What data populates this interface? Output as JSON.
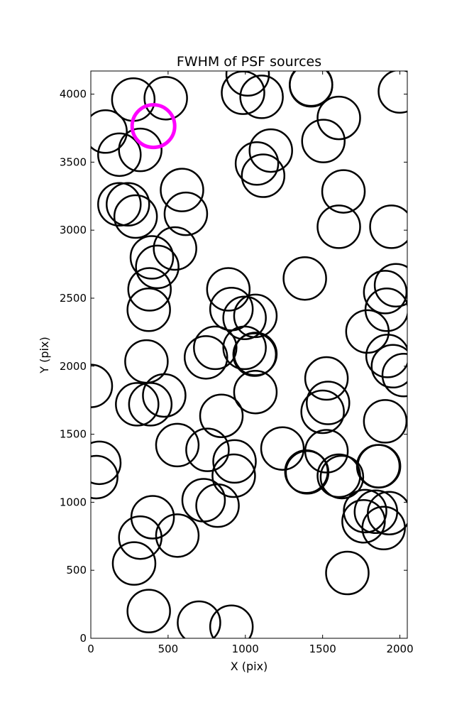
{
  "chart_data": {
    "type": "scatter",
    "title": "FWHM of PSF sources",
    "xlabel": "X (pix)",
    "ylabel": "Y (pix)",
    "xlim": [
      0,
      2048
    ],
    "ylim": [
      0,
      4170
    ],
    "xticks": [
      0,
      500,
      1000,
      1500,
      2000
    ],
    "yticks": [
      0,
      500,
      1000,
      1500,
      2000,
      2500,
      3000,
      3500,
      4000
    ],
    "grid": false,
    "marker": "open circle",
    "colors": {
      "points": "#000000",
      "highlight": "#ff00ff"
    },
    "highlight": {
      "x": 405,
      "y": 3765
    },
    "points": [
      [
        275,
        3960
      ],
      [
        485,
        3970
      ],
      [
        95,
        3725
      ],
      [
        185,
        3555
      ],
      [
        320,
        3590
      ],
      [
        1015,
        4145
      ],
      [
        985,
        4010
      ],
      [
        1105,
        3980
      ],
      [
        1425,
        4065
      ],
      [
        1425,
        4070
      ],
      [
        1605,
        3825
      ],
      [
        1505,
        3655
      ],
      [
        2000,
        4020
      ],
      [
        1165,
        3585
      ],
      [
        1075,
        3490
      ],
      [
        1115,
        3400
      ],
      [
        1635,
        3285
      ],
      [
        1605,
        3025
      ],
      [
        1945,
        3025
      ],
      [
        590,
        3295
      ],
      [
        615,
        3120
      ],
      [
        185,
        3190
      ],
      [
        240,
        3190
      ],
      [
        290,
        3100
      ],
      [
        545,
        2865
      ],
      [
        395,
        2800
      ],
      [
        430,
        2730
      ],
      [
        380,
        2565
      ],
      [
        375,
        2415
      ],
      [
        890,
        2565
      ],
      [
        910,
        2420
      ],
      [
        995,
        2355
      ],
      [
        1065,
        2370
      ],
      [
        1385,
        2645
      ],
      [
        1975,
        2595
      ],
      [
        1905,
        2545
      ],
      [
        1915,
        2415
      ],
      [
        1790,
        2255
      ],
      [
        1920,
        2075
      ],
      [
        1955,
        2000
      ],
      [
        2025,
        1935
      ],
      [
        0,
        1855
      ],
      [
        360,
        2035
      ],
      [
        745,
        2065
      ],
      [
        805,
        2135
      ],
      [
        995,
        2135
      ],
      [
        1065,
        2090
      ],
      [
        1060,
        2085
      ],
      [
        1525,
        1910
      ],
      [
        1535,
        1730
      ],
      [
        1500,
        1665
      ],
      [
        1065,
        1810
      ],
      [
        845,
        1635
      ],
      [
        1905,
        1595
      ],
      [
        475,
        1785
      ],
      [
        300,
        1720
      ],
      [
        385,
        1720
      ],
      [
        560,
        1420
      ],
      [
        755,
        1385
      ],
      [
        930,
        1300
      ],
      [
        925,
        1195
      ],
      [
        1240,
        1395
      ],
      [
        1525,
        1375
      ],
      [
        1400,
        1220
      ],
      [
        1395,
        1225
      ],
      [
        1605,
        1195
      ],
      [
        1625,
        1185
      ],
      [
        1865,
        1265
      ],
      [
        1860,
        1265
      ],
      [
        55,
        1290
      ],
      [
        35,
        1185
      ],
      [
        730,
        1015
      ],
      [
        820,
        975
      ],
      [
        400,
        890
      ],
      [
        320,
        740
      ],
      [
        560,
        755
      ],
      [
        280,
        550
      ],
      [
        1775,
        935
      ],
      [
        1845,
        930
      ],
      [
        1765,
        860
      ],
      [
        1930,
        920
      ],
      [
        1895,
        810
      ],
      [
        1660,
        480
      ],
      [
        375,
        200
      ],
      [
        700,
        115
      ],
      [
        910,
        85
      ]
    ]
  }
}
